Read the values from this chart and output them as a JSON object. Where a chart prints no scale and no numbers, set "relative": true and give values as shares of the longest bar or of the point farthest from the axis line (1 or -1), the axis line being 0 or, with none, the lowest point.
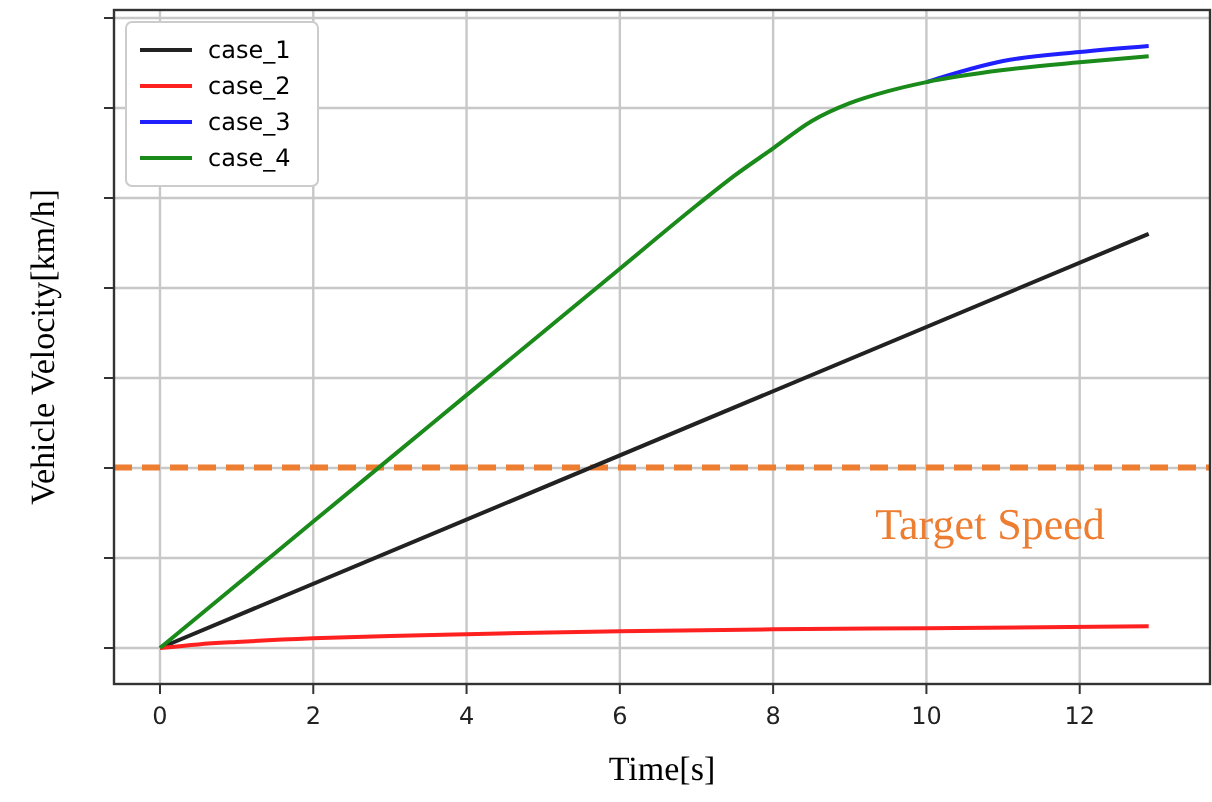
{
  "chart_data": {
    "type": "line",
    "xlabel": "Time[s]",
    "ylabel": "Vehicle Velocity[km/h]",
    "relative": true,
    "xlim": [
      -0.6,
      13.7
    ],
    "xticks": [
      0,
      2,
      4,
      6,
      8,
      10,
      12
    ],
    "grid": true,
    "legend": "top left",
    "line_style": "solid",
    "marker": "none",
    "series": [
      {
        "name": "case_1",
        "color": "#222222",
        "x": [
          0,
          12.9
        ],
        "values": [
          0,
          0.688
        ]
      },
      {
        "name": "case_2",
        "color": "#ff2020",
        "x": [
          0,
          0.5,
          1,
          2,
          3,
          4,
          6,
          8,
          10,
          12.9
        ],
        "values": [
          0,
          0.006,
          0.01,
          0.016,
          0.02,
          0.023,
          0.028,
          0.031,
          0.033,
          0.036
        ]
      },
      {
        "name": "case_3",
        "color": "#2020ff",
        "x": [
          10,
          11,
          12,
          12.9
        ],
        "values": [
          0.94,
          0.975,
          0.99,
          1
        ]
      },
      {
        "name": "case_4",
        "color": "#1a8a1a",
        "x": [
          0,
          1,
          2,
          3,
          4,
          5,
          6,
          7,
          7.5,
          8,
          8.5,
          9,
          9.5,
          10,
          11,
          12,
          12.9
        ],
        "values": [
          0,
          0.105,
          0.21,
          0.315,
          0.42,
          0.525,
          0.63,
          0.735,
          0.785,
          0.83,
          0.875,
          0.905,
          0.925,
          0.94,
          0.96,
          0.973,
          0.983
        ]
      }
    ],
    "ref_lines": [
      {
        "axis": "y",
        "value": 0.3,
        "label": "Target Speed",
        "color": "#ed7d31",
        "line_style": "dashed"
      }
    ]
  }
}
